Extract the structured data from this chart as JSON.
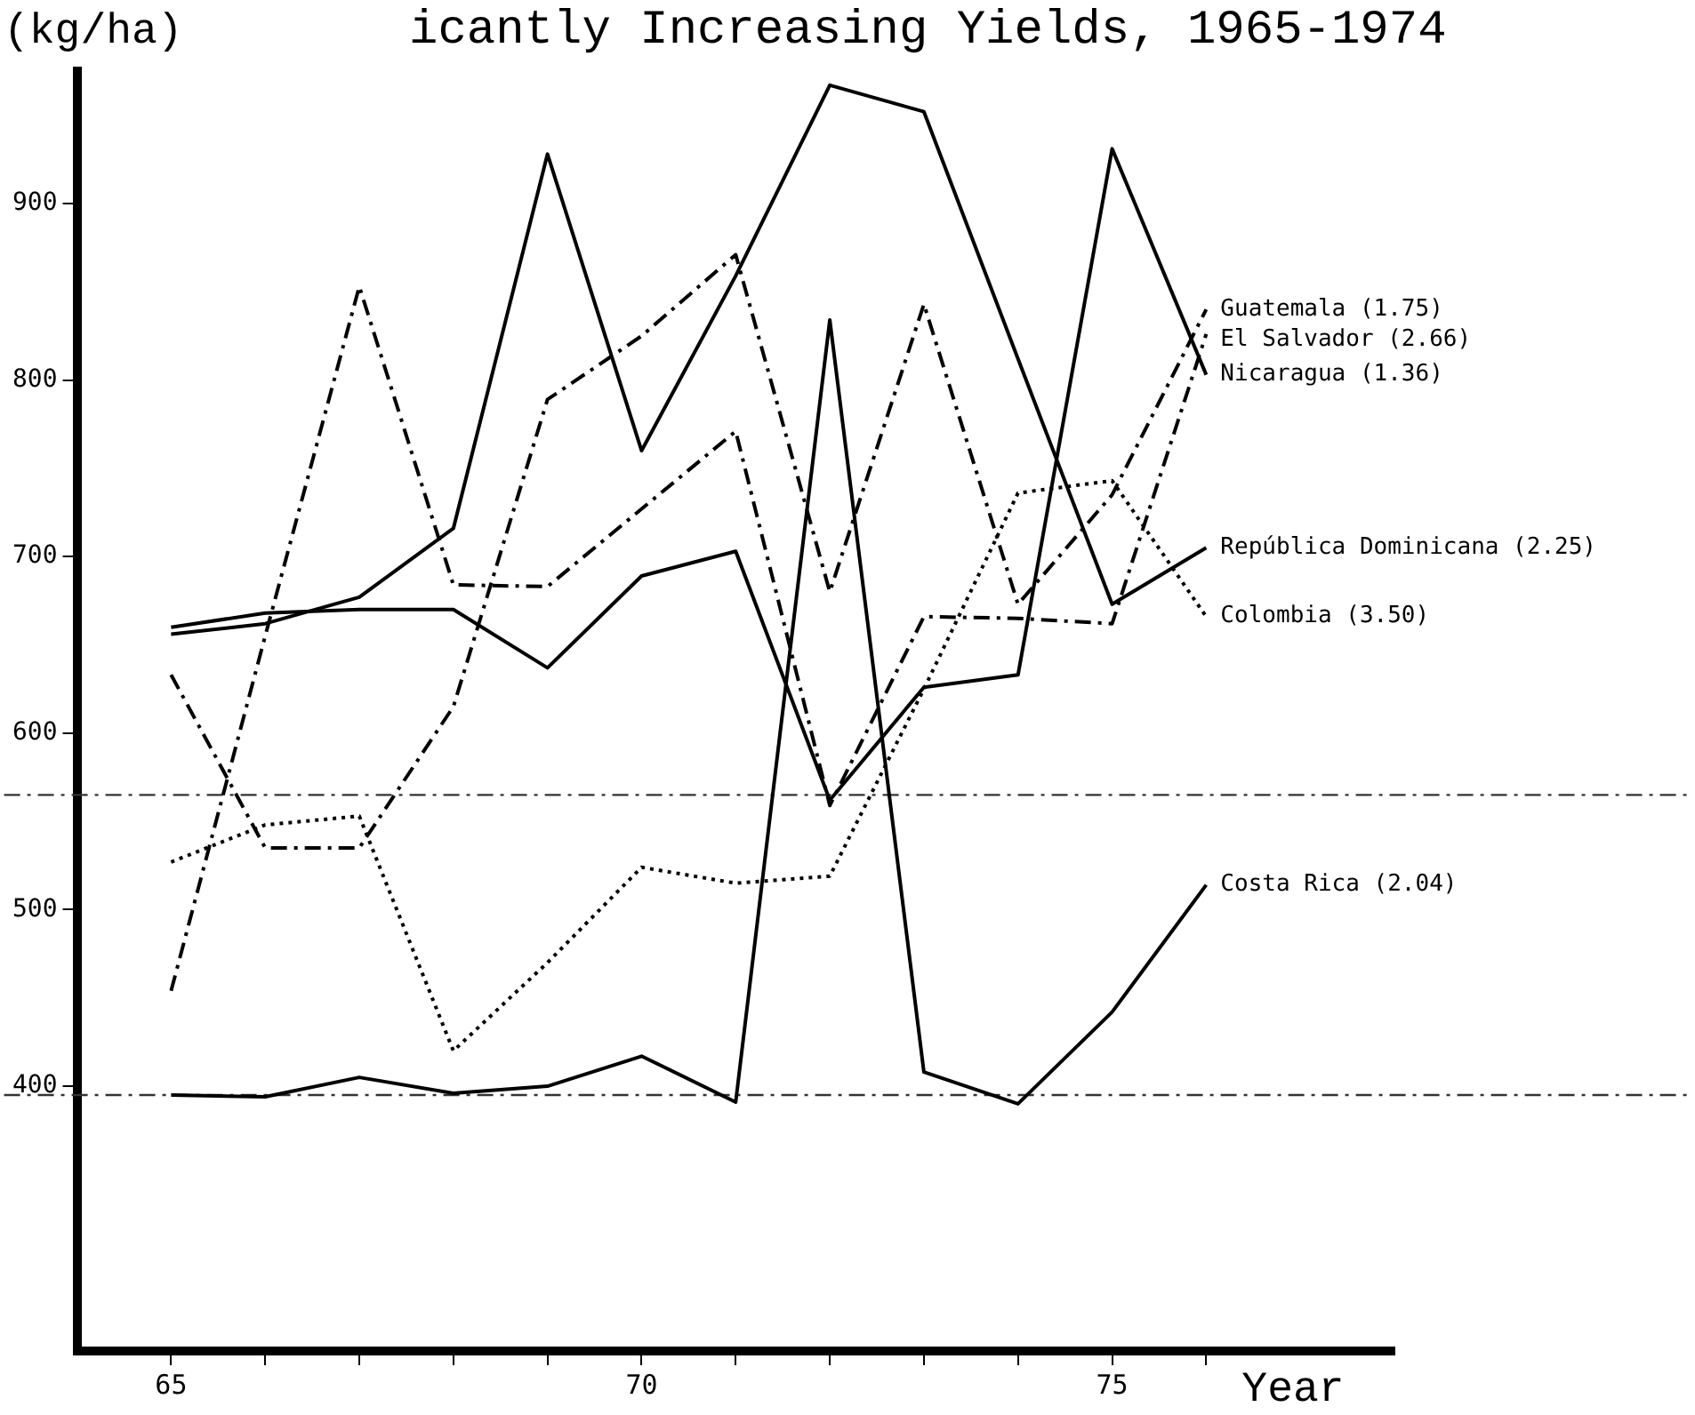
{
  "chart_data": {
    "type": "line",
    "title": "icantly Increasing Yields, 1965-1974",
    "ylabel": "(kg/ha)",
    "xlabel": "Year",
    "x": [
      65,
      66,
      67,
      68,
      69,
      70,
      71,
      72,
      73,
      74,
      75,
      76
    ],
    "series": [
      {
        "name": "Guatemala (1.75)",
        "color": "#000000",
        "line_style": "dashed",
        "values": [
          633,
          535,
          535,
          615,
          789,
          825,
          871,
          680,
          843,
          673,
          735,
          840
        ]
      },
      {
        "name": "El Salvador (2.66)",
        "color": "#000000",
        "line_style": "dashed",
        "values": [
          454,
          655,
          853,
          684,
          683,
          727,
          771,
          559,
          666,
          665,
          662,
          826
        ]
      },
      {
        "name": "Nicaragua (1.36)",
        "color": "#000000",
        "line_style": "solid",
        "values": [
          660,
          668,
          670,
          670,
          637,
          689,
          703,
          562,
          626,
          633,
          931,
          803
        ]
      },
      {
        "name": "República Dominicana (2.25)",
        "color": "#000000",
        "line_style": "solid",
        "values": [
          656,
          662,
          677,
          716,
          928,
          760,
          859,
          967,
          952,
          812,
          673,
          705
        ]
      },
      {
        "name": "Colombia (3.50)",
        "color": "#000000",
        "line_style": "dotted",
        "values": [
          527,
          548,
          553,
          420,
          470,
          524,
          515,
          519,
          625,
          736,
          743,
          666
        ]
      },
      {
        "name": "Costa Rica (2.04)",
        "color": "#000000",
        "line_style": "solid",
        "values": [
          395,
          394,
          405,
          396,
          400,
          417,
          391,
          834,
          408,
          390,
          442,
          514
        ]
      }
    ],
    "xlim": [
      64,
      78
    ],
    "xticks": [
      65,
      {
        "value": 66,
        "label": null
      },
      {
        "value": 67,
        "label": null
      },
      {
        "value": 68,
        "label": null
      },
      {
        "value": 69,
        "label": null
      },
      70,
      {
        "value": 71,
        "label": null
      },
      {
        "value": 72,
        "label": null
      },
      {
        "value": 73,
        "label": null
      },
      {
        "value": 74,
        "label": null
      },
      75,
      {
        "value": 76,
        "label": null
      }
    ],
    "ylim": [
      250,
      975
    ],
    "yticks": [
      400,
      500,
      600,
      700,
      800,
      900
    ],
    "ref_lines": [
      {
        "axis": "y",
        "value": 565,
        "color": "#333333",
        "line_style": "dashed"
      },
      {
        "axis": "y",
        "value": 395,
        "color": "#333333",
        "line_style": "dashed"
      }
    ],
    "grid": false,
    "legend": false,
    "marker": "none"
  }
}
